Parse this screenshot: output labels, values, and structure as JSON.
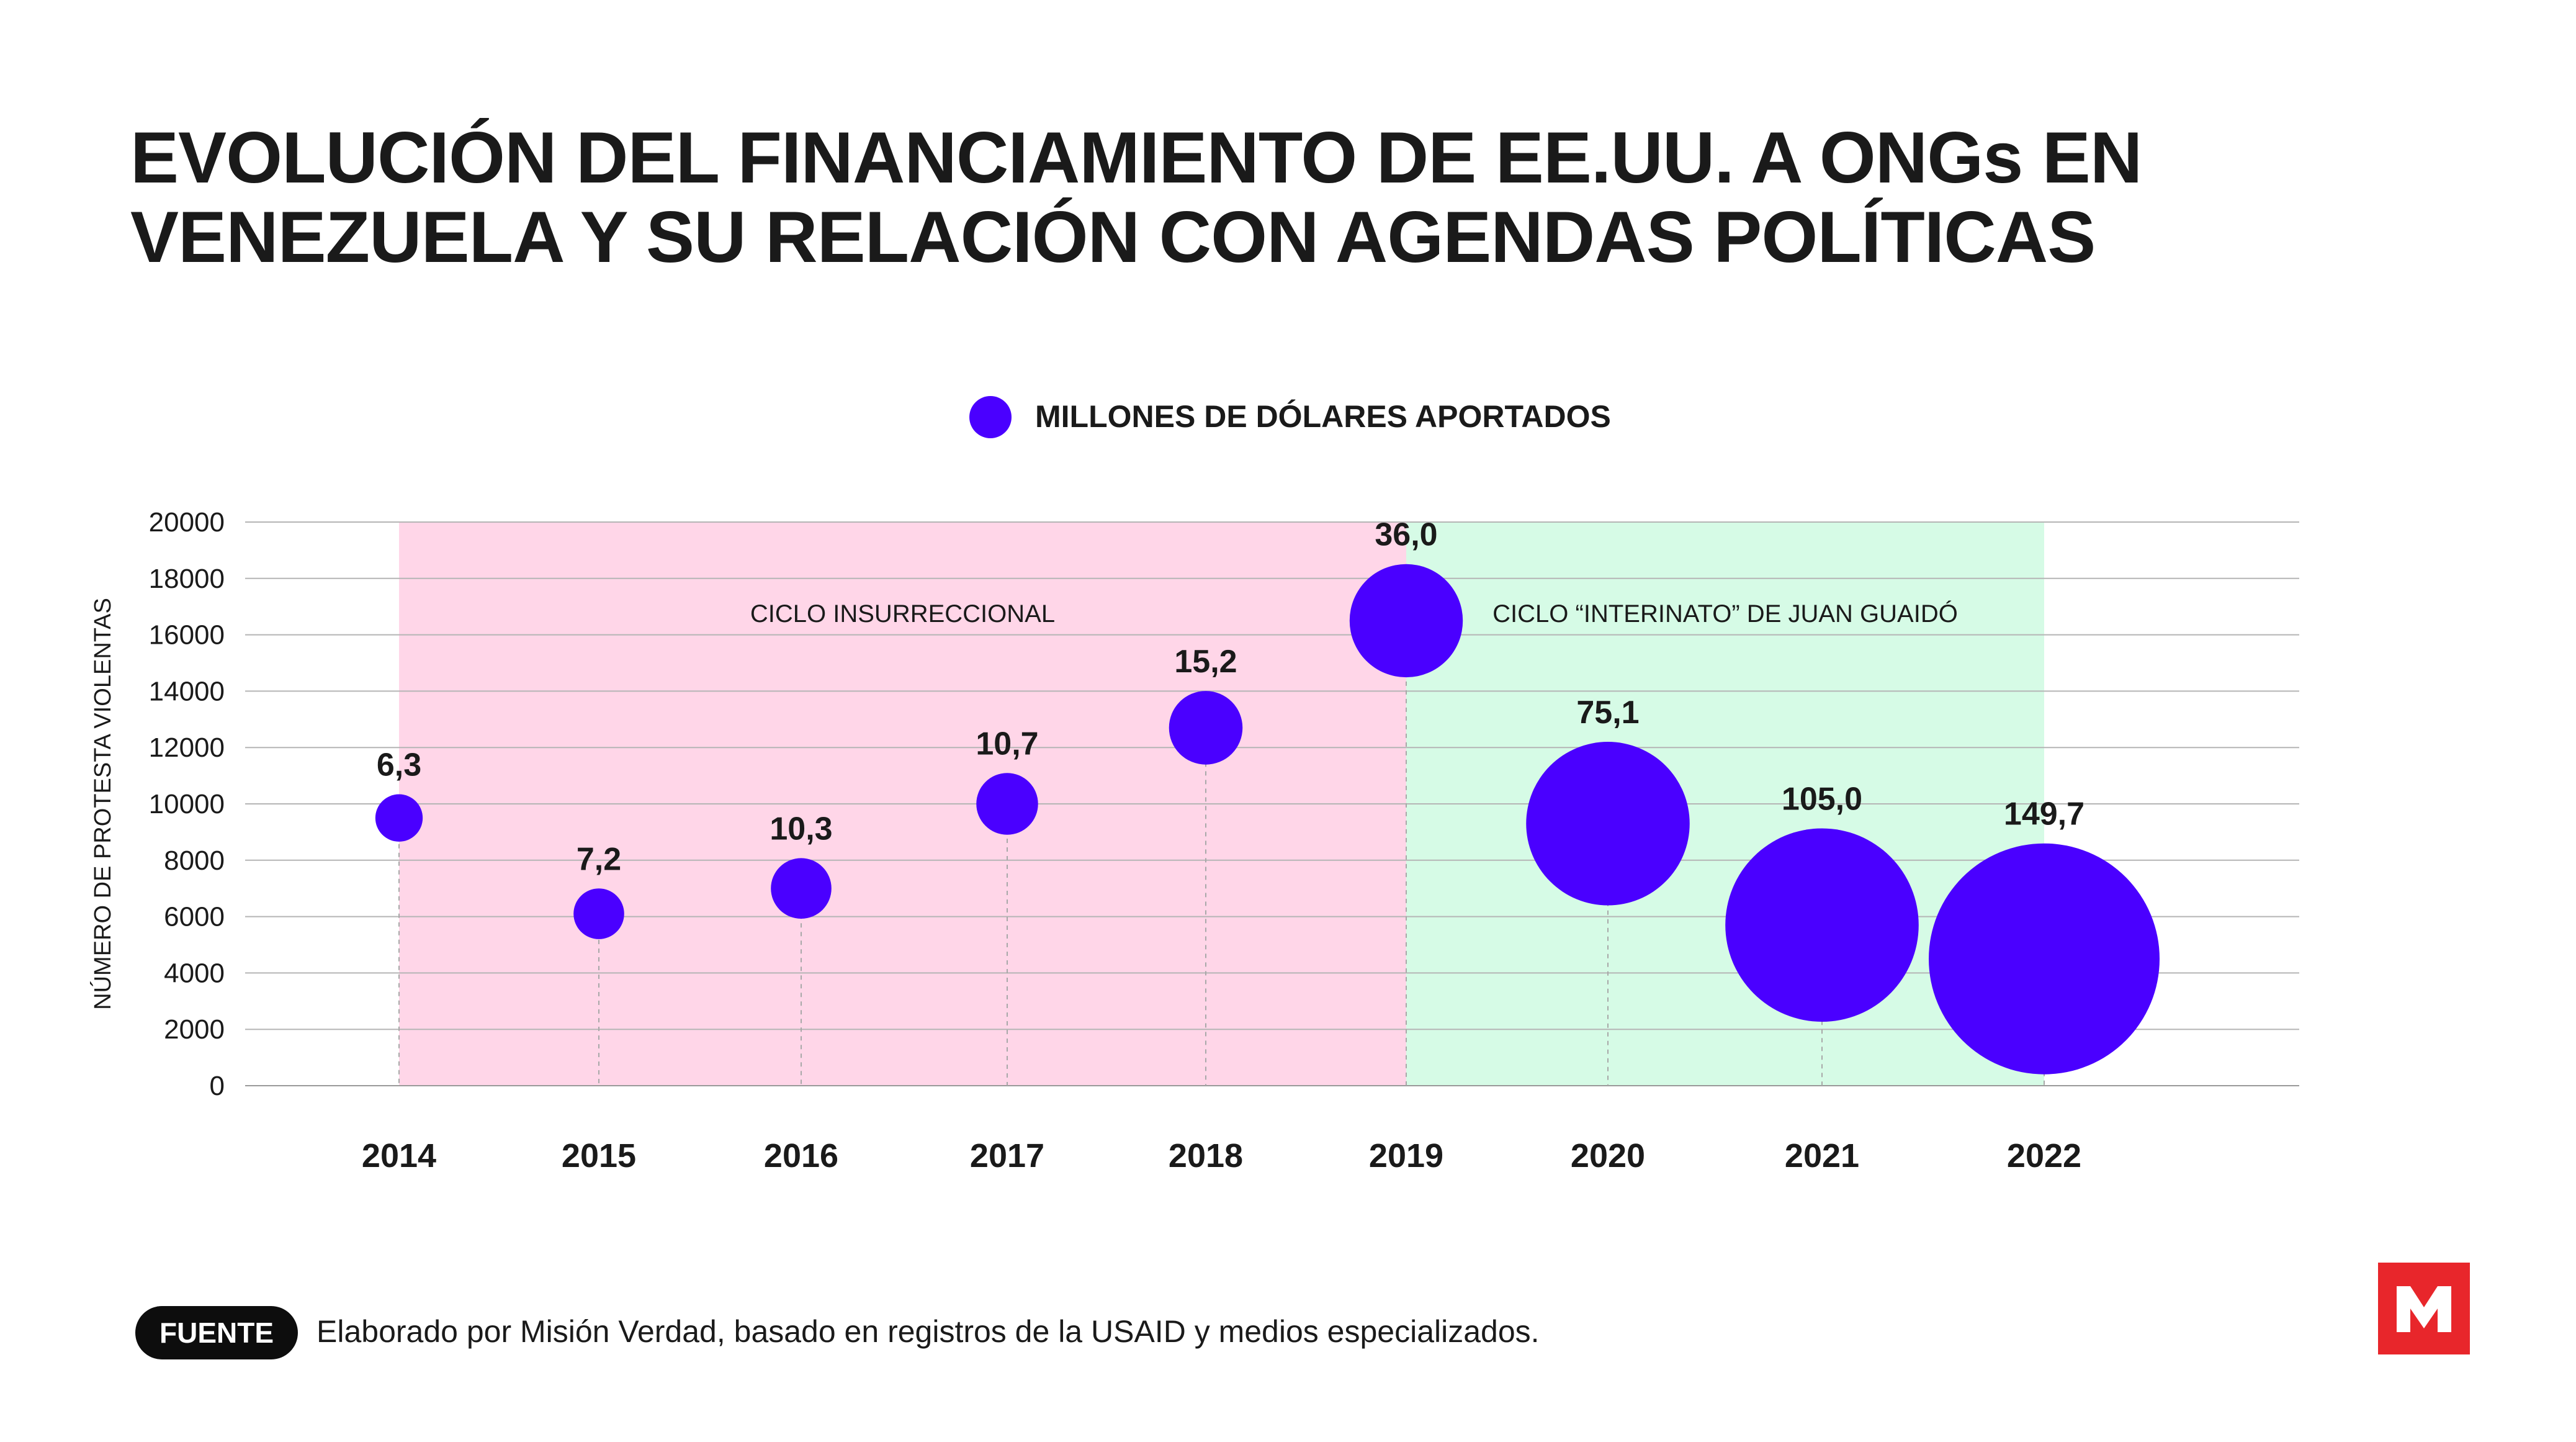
{
  "title_lines": [
    "EVOLUCIÓN DEL FINANCIAMIENTO DE EE.UU. A ONGs EN",
    "VENEZUELA Y SU RELACIÓN CON AGENDAS POLÍTICAS"
  ],
  "footer": {
    "badge": "FUENTE",
    "text": "Elaborado por Misión Verdad, basado en registros de la USAID y medios especializados."
  },
  "logo": {
    "color": "#e8262b"
  },
  "chart_data": {
    "type": "scatter",
    "title": "",
    "ylabel": "NÚMERO DE PROTESTA VIOLENTAS",
    "xlabel": "",
    "ylim": [
      0,
      20000
    ],
    "yticks": [
      "0",
      "2000",
      "4000",
      "6000",
      "8000",
      "10000",
      "12000",
      "14000",
      "16000",
      "18000",
      "20000"
    ],
    "grid": true,
    "legend": {
      "label": "MILLONES DE DÓLARES APORTADOS",
      "position": "top-center"
    },
    "bubble_color": "#4a00ff",
    "points": [
      {
        "x": "2014",
        "y": 9500,
        "size": 6.3,
        "label": "6,3"
      },
      {
        "x": "2015",
        "y": 6100,
        "size": 7.2,
        "label": "7,2"
      },
      {
        "x": "2016",
        "y": 7000,
        "size": 10.3,
        "label": "10,3"
      },
      {
        "x": "2017",
        "y": 10000,
        "size": 10.7,
        "label": "10,7"
      },
      {
        "x": "2018",
        "y": 12700,
        "size": 15.2,
        "label": "15,2"
      },
      {
        "x": "2019",
        "y": 16500,
        "size": 36.0,
        "label": "36,0"
      },
      {
        "x": "2020",
        "y": 9300,
        "size": 75.1,
        "label": "75,1"
      },
      {
        "x": "2021",
        "y": 5700,
        "size": 105.0,
        "label": "105,0"
      },
      {
        "x": "2022",
        "y": 4500,
        "size": 149.7,
        "label": "149,7"
      }
    ],
    "regions": [
      {
        "label": "CICLO INSURRECCIONAL",
        "from": "2014",
        "to": "2019",
        "color": "#ffd6e8"
      },
      {
        "label": "CICLO “INTERINATO” DE JUAN GUAIDÓ",
        "from": "2019",
        "to": "2022",
        "color": "#d6fbe6"
      }
    ]
  }
}
